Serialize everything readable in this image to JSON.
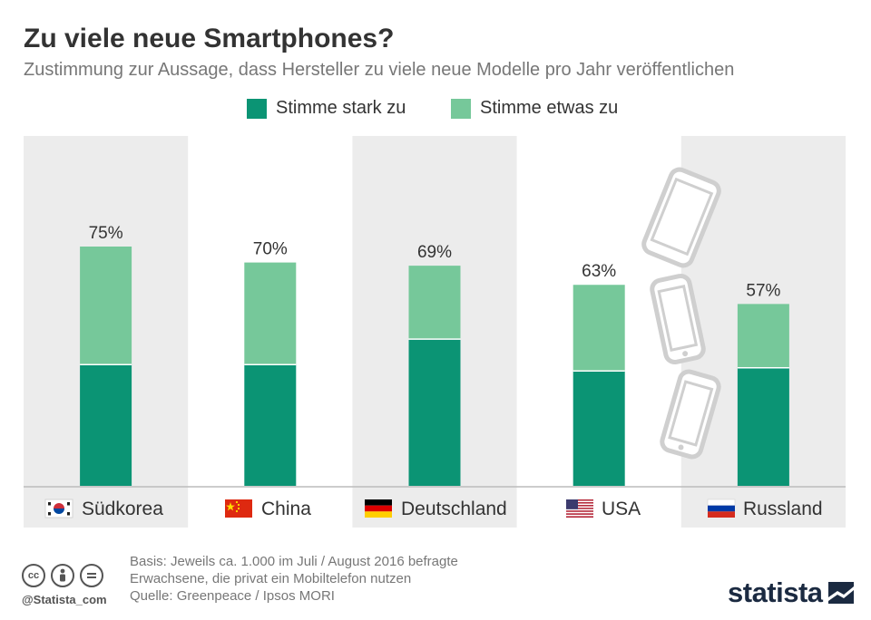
{
  "header": {
    "title": "Zu viele neue Smartphones?",
    "subtitle": "Zustimmung zur Aussage, dass Hersteller zu viele neue Modelle pro Jahr veröffentlichen"
  },
  "legend": [
    {
      "label": "Stimme stark zu",
      "color": "#0b9474"
    },
    {
      "label": "Stimme etwas zu",
      "color": "#76c89a"
    }
  ],
  "chart_data": {
    "type": "bar",
    "stacked": true,
    "categories": [
      "Südkorea",
      "China",
      "Deutschland",
      "USA",
      "Russland"
    ],
    "series": [
      {
        "name": "Stimme stark zu",
        "values": [
          38,
          38,
          46,
          36,
          37
        ]
      },
      {
        "name": "Stimme etwas zu",
        "values": [
          37,
          32,
          23,
          27,
          20
        ]
      }
    ],
    "totals": [
      "75%",
      "70%",
      "69%",
      "63%",
      "57%"
    ],
    "ylim": [
      0,
      100
    ],
    "flags": [
      "flag-south-korea-icon",
      "flag-china-icon",
      "flag-germany-icon",
      "flag-usa-icon",
      "flag-russia-icon"
    ],
    "colors": {
      "strong": "#0b9474",
      "some": "#76c89a",
      "band": "#ececec",
      "axis": "#bbbbbb",
      "phone": "#cfcfcf"
    }
  },
  "footer": {
    "basis_line1": "Basis: Jeweils ca. 1.000 im Juli / August 2016 befragte",
    "basis_line2": "Erwachsene, die privat ein Mobiltelefon nutzen",
    "source": "Quelle: Greenpeace / Ipsos MORI",
    "handle": "@Statista_com",
    "brand": "statista"
  }
}
